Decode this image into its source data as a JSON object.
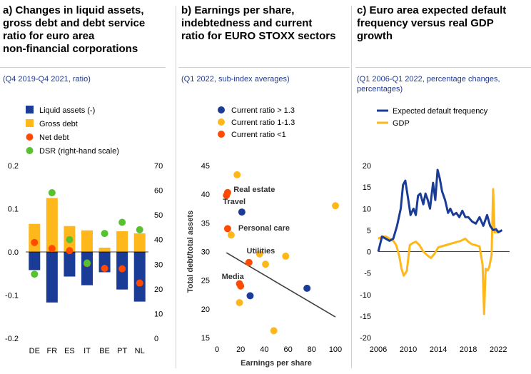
{
  "colors": {
    "navy": "#1a3c96",
    "yellow": "#ffb81c",
    "orange": "#ff4a00",
    "green": "#56c22f",
    "grey_line": "#404040"
  },
  "chart_data": [
    {
      "type": "bar",
      "title": "a) Changes in liquid assets,\ngross debt and debt service\nratio for euro area\nnon-financial corporations",
      "subtitle": "(Q4 2019-Q4 2021, ratio)",
      "categories": [
        "DE",
        "FR",
        "ES",
        "IT",
        "BE",
        "PT",
        "NL"
      ],
      "ylim": [
        -0.2,
        0.2
      ],
      "yticks": [
        "0.2",
        "0.1",
        "0.0",
        "-0.1",
        "-0.2"
      ],
      "ylim_right": [
        0,
        70
      ],
      "yticks_right": [
        "70",
        "60",
        "50",
        "40",
        "30",
        "20",
        "10",
        "0"
      ],
      "legend_placement": "top-left",
      "series": [
        {
          "name": "Liquid assets (-)",
          "kind": "bar",
          "axis": "left",
          "color": "#1a3c96",
          "values": [
            -0.042,
            -0.117,
            -0.057,
            -0.077,
            -0.047,
            -0.087,
            -0.115
          ]
        },
        {
          "name": "Gross debt",
          "kind": "bar",
          "axis": "left",
          "color": "#ffb81c",
          "values": [
            0.065,
            0.125,
            0.06,
            0.05,
            0.01,
            0.048,
            0.043
          ]
        },
        {
          "name": "Net debt",
          "kind": "dot",
          "axis": "left",
          "color": "#ff4a00",
          "values": [
            0.022,
            0.008,
            0.003,
            -0.027,
            -0.038,
            -0.039,
            -0.072
          ]
        },
        {
          "name": "DSR (right-hand scale)",
          "kind": "dot",
          "axis": "right",
          "color": "#56c22f",
          "values": [
            26,
            59,
            40,
            30.5,
            42.5,
            47,
            44
          ]
        }
      ]
    },
    {
      "type": "scatter",
      "title": "b) Earnings per share,\nindebtedness and current\nratio for EURO STOXX sectors",
      "subtitle": "(Q1 2022, sub-index averages)",
      "xlabel": "Earnings per share",
      "ylabel": "Total debt/total assets",
      "xlim": [
        0,
        100
      ],
      "ylim": [
        15,
        45
      ],
      "xticks": [
        0,
        20,
        40,
        60,
        80,
        100
      ],
      "yticks": [
        15,
        20,
        25,
        30,
        35,
        40,
        45
      ],
      "legend_placement": "top-left",
      "series": [
        {
          "name": "Current ratio > 1.3",
          "color": "#1a3c96",
          "points": [
            [
              21,
              36.9
            ],
            [
              28,
              22.3
            ],
            [
              76,
              23.6
            ]
          ]
        },
        {
          "name": "Current ratio 1-1.3",
          "color": "#ffb81c",
          "points": [
            [
              17,
              43.4
            ],
            [
              12,
              32.9
            ],
            [
              36,
              29.6
            ],
            [
              41,
              27.8
            ],
            [
              58,
              29.2
            ],
            [
              19,
              21.1
            ],
            [
              48,
              16.2
            ],
            [
              100,
              38
            ]
          ]
        },
        {
          "name": "Current ratio <1",
          "color": "#ff4a00",
          "points": [
            [
              9,
              40.3
            ],
            [
              8,
              39.8
            ],
            [
              9,
              34
            ],
            [
              27,
              28.1
            ],
            [
              19,
              24.4
            ],
            [
              20,
              24
            ]
          ]
        }
      ],
      "trendline": [
        [
          8,
          29.8
        ],
        [
          100,
          18.6
        ]
      ],
      "annotations": [
        {
          "text": "Real estate",
          "x": 14,
          "y": 40.4
        },
        {
          "text": "Travel",
          "x": 5,
          "y": 38.3
        },
        {
          "text": "Personal care",
          "x": 18,
          "y": 33.7
        },
        {
          "text": "Utilities",
          "x": 25,
          "y": 29.7
        },
        {
          "text": "Media",
          "x": 4,
          "y": 25.2
        }
      ]
    },
    {
      "type": "line",
      "title": "c) Euro area expected default\nfrequency versus real GDP\ngrowth",
      "subtitle": "(Q1 2006-Q1 2022, percentage changes,\npercentages)",
      "xlim": [
        2006,
        2023.5
      ],
      "ylim": [
        -20,
        20
      ],
      "xticks": [
        2006,
        2010,
        2014,
        2018,
        2022
      ],
      "yticks": [
        20,
        15,
        10,
        5,
        0,
        -5,
        -10,
        -15,
        -20
      ],
      "legend_placement": "top-left",
      "series": [
        {
          "name": "Expected default frequency",
          "color": "#1a3c96",
          "points": [
            [
              2006,
              0
            ],
            [
              2006.5,
              3.5
            ],
            [
              2007,
              3
            ],
            [
              2007.5,
              2.5
            ],
            [
              2008,
              3
            ],
            [
              2008.5,
              6
            ],
            [
              2009,
              10
            ],
            [
              2009.3,
              15.5
            ],
            [
              2009.6,
              16.5
            ],
            [
              2010,
              12
            ],
            [
              2010.3,
              8.5
            ],
            [
              2010.7,
              10
            ],
            [
              2011,
              8.5
            ],
            [
              2011.3,
              13
            ],
            [
              2011.6,
              13.5
            ],
            [
              2012,
              11
            ],
            [
              2012.3,
              13.5
            ],
            [
              2012.6,
              12
            ],
            [
              2012.9,
              10
            ],
            [
              2013.3,
              16
            ],
            [
              2013.6,
              12
            ],
            [
              2013.9,
              19
            ],
            [
              2014.2,
              17
            ],
            [
              2014.5,
              14
            ],
            [
              2014.9,
              12
            ],
            [
              2015.3,
              9
            ],
            [
              2015.6,
              10
            ],
            [
              2016,
              8.5
            ],
            [
              2016.4,
              9
            ],
            [
              2016.8,
              8
            ],
            [
              2017.2,
              9.5
            ],
            [
              2017.6,
              8
            ],
            [
              2018,
              8
            ],
            [
              2018.5,
              7
            ],
            [
              2019,
              6.5
            ],
            [
              2019.5,
              8
            ],
            [
              2020,
              6
            ],
            [
              2020.5,
              8.5
            ],
            [
              2020.9,
              6
            ],
            [
              2021.3,
              5
            ],
            [
              2021.7,
              5.2
            ],
            [
              2022,
              4.5
            ],
            [
              2022.5,
              5
            ]
          ]
        },
        {
          "name": "GDP",
          "color": "#ffb81c",
          "points": [
            [
              2006,
              3
            ],
            [
              2006.5,
              3.5
            ],
            [
              2007,
              3.5
            ],
            [
              2007.5,
              3
            ],
            [
              2008,
              2.5
            ],
            [
              2008.4,
              1.5
            ],
            [
              2008.8,
              -1
            ],
            [
              2009.1,
              -4
            ],
            [
              2009.4,
              -5.6
            ],
            [
              2009.8,
              -4.5
            ],
            [
              2010.2,
              1.5
            ],
            [
              2010.6,
              2
            ],
            [
              2011,
              2.3
            ],
            [
              2011.5,
              1.5
            ],
            [
              2012,
              0
            ],
            [
              2012.5,
              -0.8
            ],
            [
              2013,
              -1.5
            ],
            [
              2013.5,
              -0.5
            ],
            [
              2014,
              1
            ],
            [
              2015,
              1.5
            ],
            [
              2016,
              2
            ],
            [
              2017,
              2.5
            ],
            [
              2017.6,
              3
            ],
            [
              2018,
              2.3
            ],
            [
              2018.5,
              1.7
            ],
            [
              2019,
              1.5
            ],
            [
              2019.5,
              1.2
            ],
            [
              2019.9,
              -3
            ],
            [
              2020.1,
              -14.5
            ],
            [
              2020.3,
              -4
            ],
            [
              2020.6,
              -4.4
            ],
            [
              2020.8,
              -3.5
            ],
            [
              2021.1,
              -0.8
            ],
            [
              2021.3,
              14.5
            ],
            [
              2021.5,
              4.5
            ],
            [
              2021.8,
              4.5
            ],
            [
              2022,
              5
            ]
          ]
        }
      ]
    }
  ]
}
